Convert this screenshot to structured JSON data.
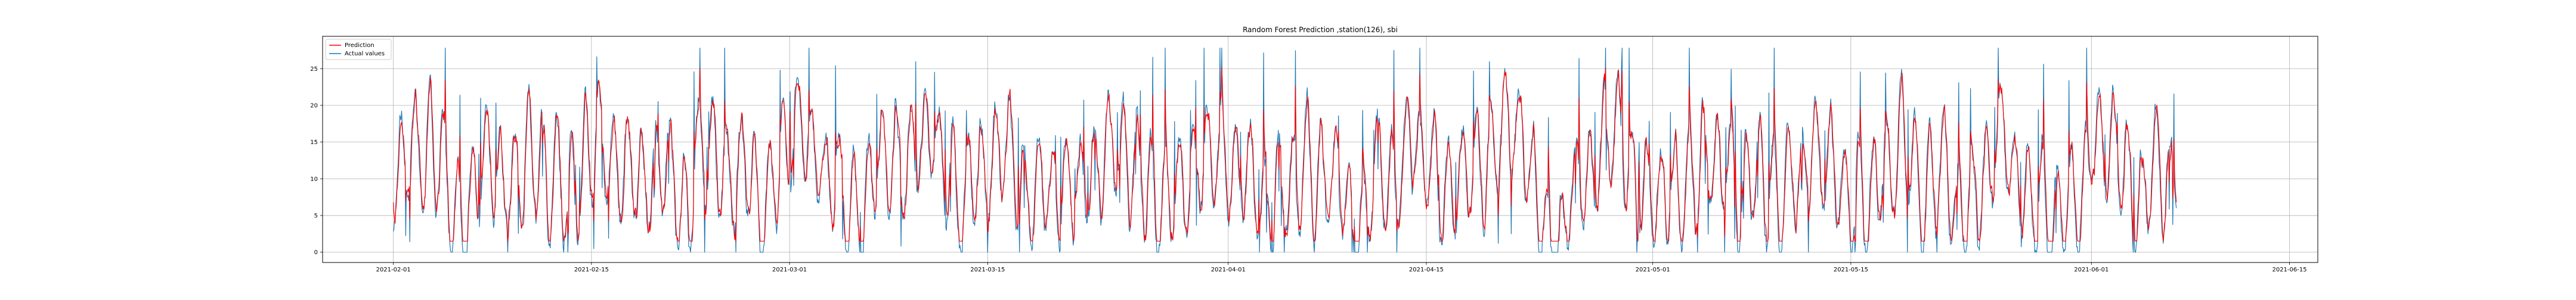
{
  "chart_data": {
    "type": "line",
    "title": "Random Forest Prediction ,station(126), sbi",
    "xlabel": "",
    "ylabel": "",
    "x_start": "2021-02-01",
    "x_end": "2021-06-07",
    "xlim": [
      "2021-01-27",
      "2021-06-17"
    ],
    "ylim": [
      -1.4,
      29.4
    ],
    "x_ticks": [
      "2021-02-01",
      "2021-02-15",
      "2021-03-01",
      "2021-03-15",
      "2021-04-01",
      "2021-04-15",
      "2021-05-01",
      "2021-05-15",
      "2021-06-01",
      "2021-06-15"
    ],
    "y_ticks": [
      0,
      5,
      10,
      15,
      20,
      25
    ],
    "grid": true,
    "legend_position": "top-left",
    "series": [
      {
        "name": "Prediction",
        "color": "#ff0000"
      },
      {
        "name": "Actual values",
        "color": "#1f77b4"
      }
    ]
  }
}
